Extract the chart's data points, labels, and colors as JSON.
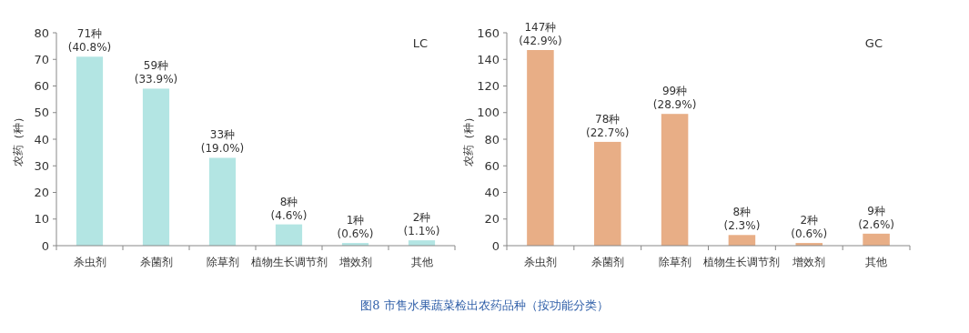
{
  "chart_data": [
    {
      "type": "bar",
      "ylabel": "农药（种）",
      "categories": [
        "杀虫剂",
        "杀菌剂",
        "除草剂",
        "植物生长调节剂",
        "增效剂",
        "其他"
      ],
      "values": [
        71,
        59,
        33,
        8,
        1,
        2
      ],
      "color": "#b3e5e3",
      "ylim": [
        0,
        80
      ],
      "yticks": [
        0,
        10,
        20,
        30,
        40,
        50,
        60,
        70,
        80
      ],
      "value_labels": [
        "71种\n(40.8%)",
        "59种\n(33.9%)",
        "33种\n(19.0%)",
        "8种\n(4.6%)",
        "1种\n(0.6%)",
        "2种\n(1.1%)"
      ],
      "annotations": [
        "LC",
        "图8  市售水果蔬菜检出农药品种（按功能分类）"
      ]
    },
    {
      "type": "bar",
      "ylabel": "农药（种）",
      "categories": [
        "杀虫剂",
        "杀菌剂",
        "除草剂",
        "植物生长调节剂",
        "增效剂",
        "其他"
      ],
      "values": [
        147,
        78,
        99,
        8,
        2,
        9
      ],
      "color": "#e8ae86",
      "ylim": [
        0,
        160
      ],
      "yticks": [
        0,
        20,
        40,
        60,
        80,
        100,
        120,
        140,
        160
      ],
      "value_labels": [
        "147种\n(42.9%)",
        "78种\n(22.7%)",
        "99种\n(28.9%)",
        "8种\n(2.3%)",
        "2种\n(0.6%)",
        "9种\n(2.6%)"
      ],
      "annotations": [
        "GC"
      ]
    }
  ]
}
